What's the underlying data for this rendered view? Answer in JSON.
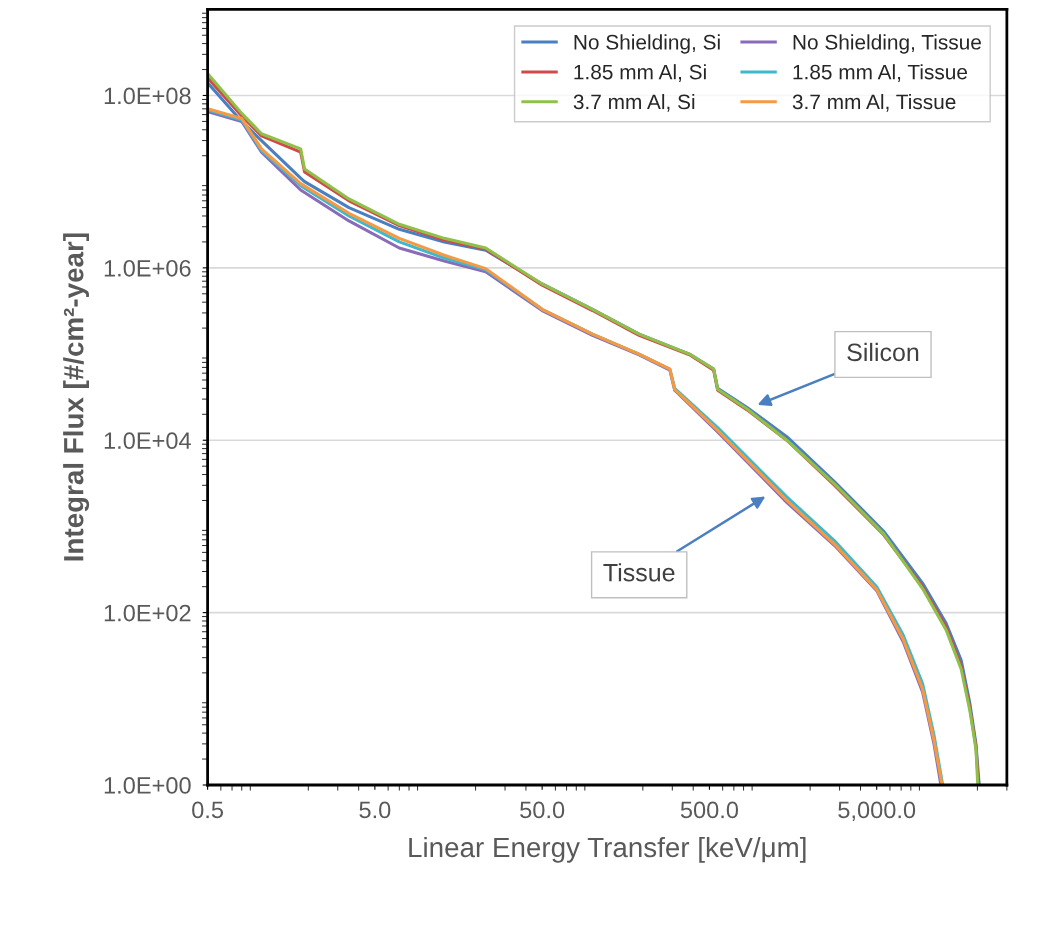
{
  "chart_data": {
    "type": "line",
    "xlabel": "Linear Energy Transfer [keV/μm]",
    "ylabel": "Integral Flux [#/cm²-year]",
    "log": "xy",
    "grid": "y",
    "legend": "top right",
    "xlim": [
      0.5,
      30000
    ],
    "xticks": [
      0.5,
      {
        "value": 5,
        "label": "5.0"
      },
      {
        "value": 50,
        "label": "50.0"
      },
      {
        "value": 500,
        "label": "500.0"
      },
      {
        "value": 5000,
        "label": "5,000.0"
      }
    ],
    "ylim": [
      1,
      1000000000
    ],
    "yticks": [
      {
        "value": 1,
        "label": "1.0E+00"
      },
      {
        "value": 100,
        "label": "1.0E+02"
      },
      {
        "value": 10000,
        "label": "1.0E+04"
      },
      {
        "value": 1000000,
        "label": "1.0E+06"
      },
      {
        "value": 100000000,
        "label": "1.0E+08"
      }
    ],
    "series": [
      {
        "name": "No Shielding, Si",
        "color": "#4a7fc1",
        "x": [
          0.5,
          0.8,
          1.05,
          1.8,
          1.9,
          3.5,
          7,
          13,
          23,
          50,
          100,
          190,
          380,
          530,
          560,
          840,
          1450,
          2800,
          5500,
          9400,
          13000,
          16000,
          18000,
          19600,
          20500
        ],
        "values": [
          140000000,
          50000000,
          30000000,
          11000000,
          10000000,
          5000000,
          2800000,
          2000000,
          1600000,
          650000,
          330000,
          170000,
          100000,
          67000,
          40000,
          24000,
          11000,
          3300,
          880,
          220,
          75,
          28,
          9,
          3,
          1
        ]
      },
      {
        "name": "1.85 mm Al, Si",
        "color": "#d04a4a",
        "x": [
          0.5,
          0.8,
          1.05,
          1.8,
          1.9,
          3.5,
          7,
          13,
          23,
          50,
          100,
          190,
          380,
          530,
          560,
          840,
          1450,
          2800,
          5500,
          9400,
          13000,
          16000,
          18000,
          19600,
          20300
        ],
        "values": [
          160000000,
          58000000,
          34000000,
          22000000,
          13000000,
          6000000,
          3100000,
          2100000,
          1650000,
          630000,
          320000,
          165000,
          98000,
          65000,
          38000,
          22500,
          10000,
          3000,
          800,
          200,
          68,
          24,
          8,
          2.8,
          1
        ]
      },
      {
        "name": "3.7 mm Al, Si",
        "color": "#8fc14a",
        "x": [
          0.5,
          0.8,
          1.05,
          1.8,
          1.9,
          3.5,
          7,
          13,
          23,
          50,
          100,
          190,
          380,
          530,
          560,
          840,
          1450,
          2800,
          5500,
          9400,
          13000,
          16000,
          18000,
          19600,
          20100
        ],
        "values": [
          180000000,
          62000000,
          36000000,
          24000000,
          14000000,
          6300000,
          3200000,
          2200000,
          1700000,
          650000,
          330000,
          170000,
          100000,
          67000,
          39000,
          23000,
          10000,
          3100,
          820,
          190,
          63,
          22,
          7.4,
          2.6,
          1
        ]
      },
      {
        "name": "No Shielding, Tissue",
        "color": "#8a6bb8",
        "x": [
          0.5,
          0.8,
          1.05,
          1.8,
          3.5,
          7,
          13,
          23,
          50,
          100,
          190,
          290,
          310,
          560,
          1450,
          2800,
          5000,
          7200,
          9400,
          11000,
          12100
        ],
        "values": [
          65000000,
          50000000,
          22000000,
          8000000,
          3500000,
          1700000,
          1200000,
          900000,
          320000,
          165000,
          98000,
          65000,
          38000,
          12500,
          1900,
          600,
          180,
          46,
          12,
          3,
          1
        ]
      },
      {
        "name": "1.85 mm Al, Tissue",
        "color": "#3fb8cc",
        "x": [
          0.5,
          0.8,
          1.05,
          1.8,
          3.5,
          7,
          13,
          23,
          50,
          100,
          190,
          290,
          310,
          560,
          1450,
          2800,
          5000,
          7200,
          9400,
          11000,
          12400
        ],
        "values": [
          68000000,
          52000000,
          23000000,
          9000000,
          4000000,
          2000000,
          1300000,
          950000,
          330000,
          170000,
          100000,
          67000,
          40000,
          14000,
          2200,
          680,
          200,
          55,
          15,
          3.8,
          1
        ]
      },
      {
        "name": "3.7 mm Al, Tissue",
        "color": "#f59a42",
        "x": [
          0.5,
          0.8,
          1.05,
          1.8,
          3.5,
          7,
          13,
          23,
          50,
          100,
          190,
          290,
          310,
          560,
          1450,
          2800,
          5000,
          7200,
          9400,
          11000,
          12300
        ],
        "values": [
          70000000,
          54000000,
          24000000,
          9500000,
          4300000,
          2200000,
          1400000,
          980000,
          330000,
          170000,
          100000,
          67000,
          39000,
          13000,
          2000,
          620,
          185,
          49,
          13,
          3.3,
          1
        ]
      }
    ],
    "annotations": [
      "Silicon",
      "Tissue"
    ]
  }
}
